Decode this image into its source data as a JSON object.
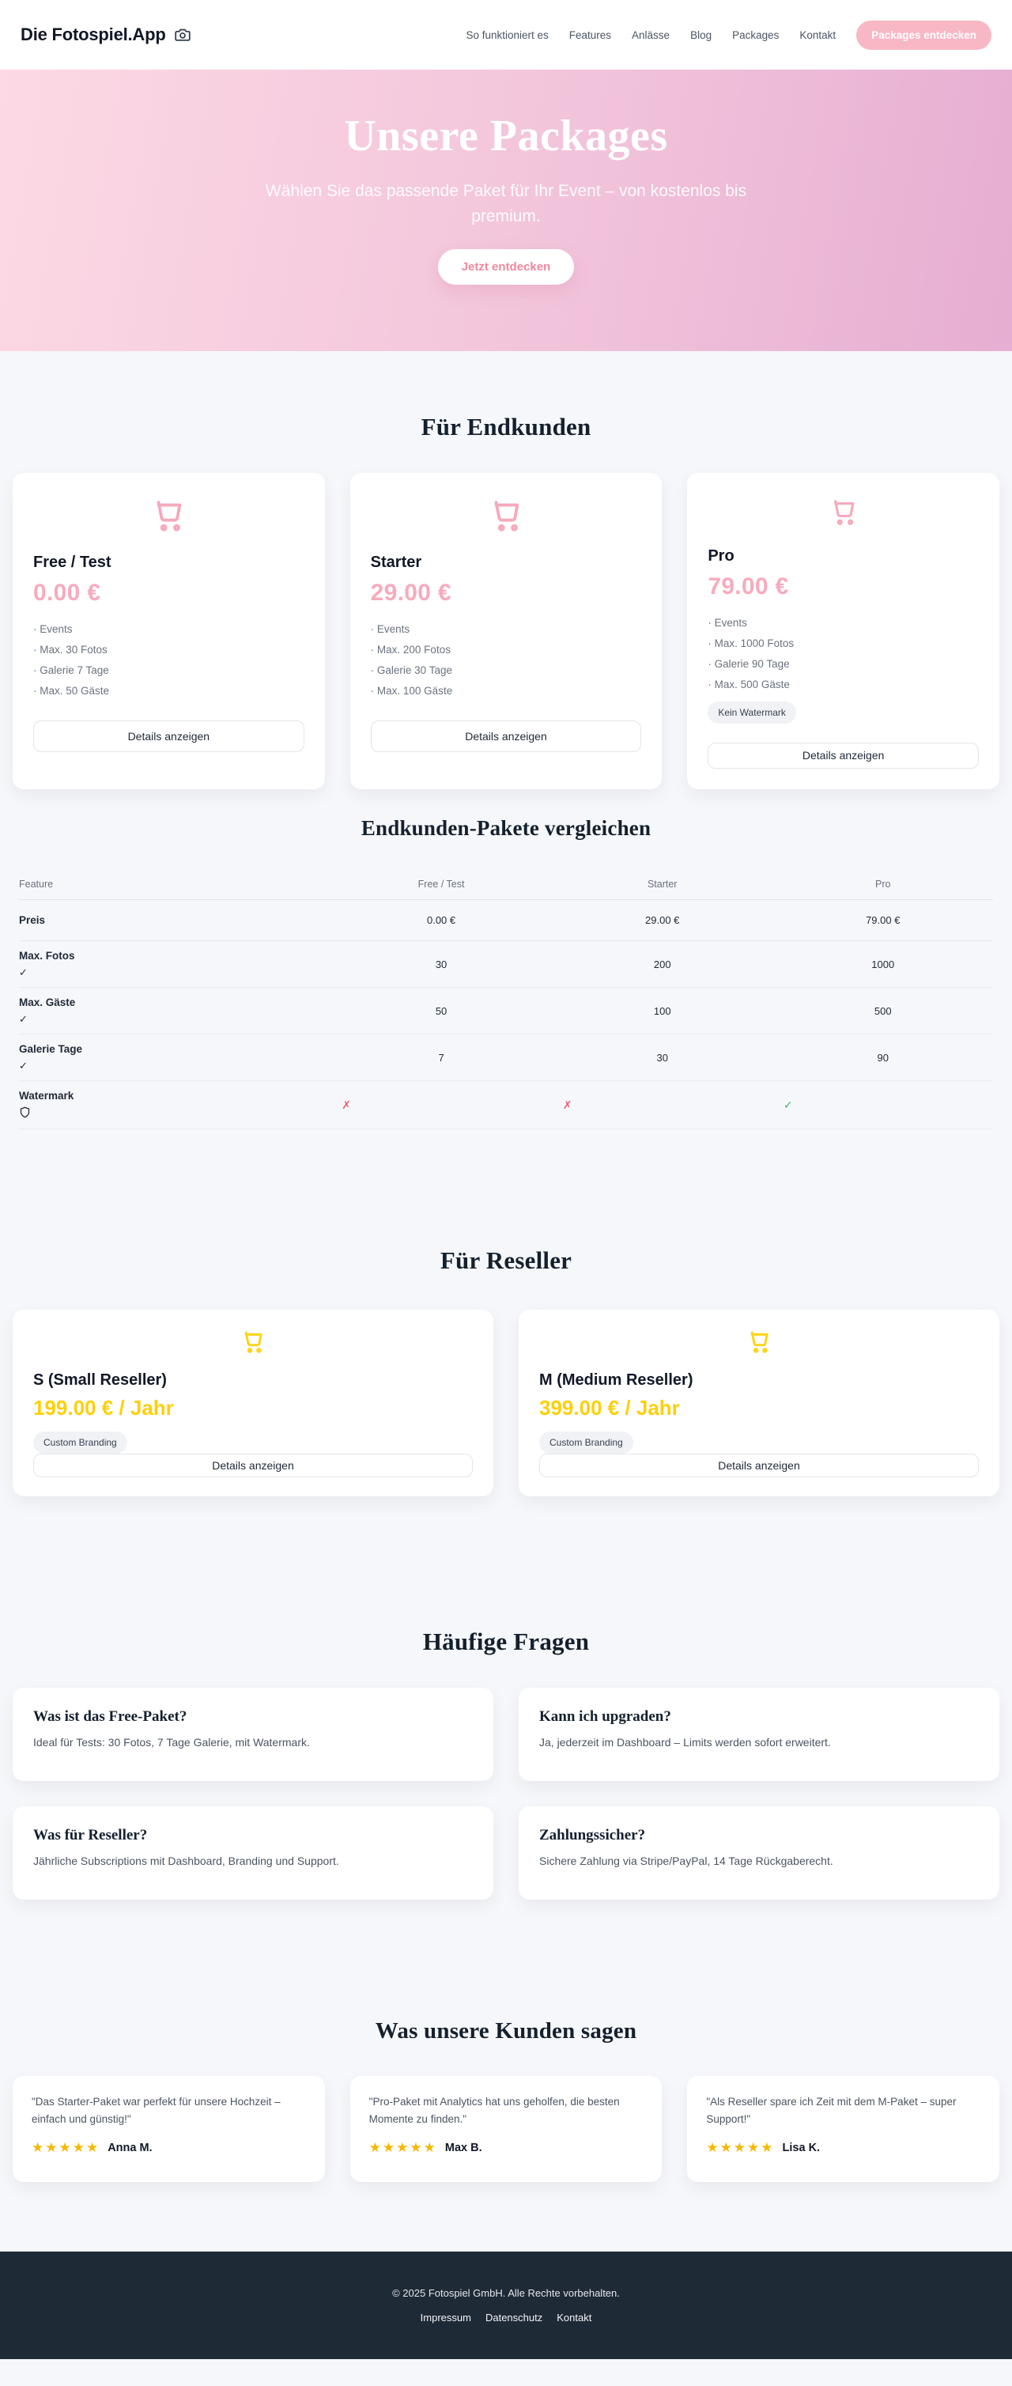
{
  "header": {
    "logo": "Die Fotospiel.App",
    "nav": [
      "So funktioniert es",
      "Features",
      "Anlässe",
      "Blog",
      "Packages",
      "Kontakt"
    ],
    "cta": "Packages entdecken"
  },
  "hero": {
    "title": "Unsere Packages",
    "subtitle": "Wählen Sie das passende Paket für Ihr Event – von kostenlos bis premium.",
    "cta": "Jetzt entdecken"
  },
  "endkunden": {
    "heading": "Für Endkunden",
    "details_label": "Details anzeigen",
    "cards": [
      {
        "name": "Free / Test",
        "price": "0.00 €",
        "features": [
          "Events",
          "Max. 30 Fotos",
          "Galerie 7 Tage",
          "Max. 50 Gäste"
        ],
        "badge": null
      },
      {
        "name": "Starter",
        "price": "29.00 €",
        "features": [
          "Events",
          "Max. 200 Fotos",
          "Galerie 30 Tage",
          "Max. 100 Gäste"
        ],
        "badge": null
      },
      {
        "name": "Pro",
        "price": "79.00 €",
        "features": [
          "Events",
          "Max. 1000 Fotos",
          "Galerie 90 Tage",
          "Max. 500 Gäste"
        ],
        "badge": "Kein Watermark"
      }
    ]
  },
  "comparison": {
    "heading": "Endkunden-Pakete vergleichen",
    "columns": [
      "Feature",
      "Free / Test",
      "Starter",
      "Pro"
    ],
    "rows": [
      {
        "feature": "Preis",
        "label_icon": null,
        "type": "text",
        "values": [
          "0.00 €",
          "29.00 €",
          "79.00 €"
        ]
      },
      {
        "feature": "Max. Fotos",
        "label_icon": "check",
        "type": "text",
        "values": [
          "30",
          "200",
          "1000"
        ]
      },
      {
        "feature": "Max. Gäste",
        "label_icon": "check",
        "type": "text",
        "values": [
          "50",
          "100",
          "500"
        ]
      },
      {
        "feature": "Galerie Tage",
        "label_icon": "check",
        "type": "text",
        "values": [
          "7",
          "30",
          "90"
        ]
      },
      {
        "feature": "Watermark",
        "label_icon": "shield",
        "type": "boolean",
        "values": [
          "no",
          "no",
          "yes"
        ]
      }
    ]
  },
  "reseller": {
    "heading": "Für Reseller",
    "details_label": "Details anzeigen",
    "cards": [
      {
        "name": "S (Small Reseller)",
        "price": "199.00 € / Jahr",
        "badge": "Custom Branding"
      },
      {
        "name": "M (Medium Reseller)",
        "price": "399.00 € / Jahr",
        "badge": "Custom Branding"
      }
    ]
  },
  "faq": {
    "heading": "Häufige Fragen",
    "items": [
      {
        "q": "Was ist das Free-Paket?",
        "a": "Ideal für Tests: 30 Fotos, 7 Tage Galerie, mit Watermark."
      },
      {
        "q": "Kann ich upgraden?",
        "a": "Ja, jederzeit im Dashboard – Limits werden sofort erweitert."
      },
      {
        "q": "Was für Reseller?",
        "a": "Jährliche Subscriptions mit Dashboard, Branding und Support."
      },
      {
        "q": "Zahlungssicher?",
        "a": "Sichere Zahlung via Stripe/PayPal, 14 Tage Rückgaberecht."
      }
    ]
  },
  "testimonials": {
    "heading": "Was unsere Kunden sagen",
    "items": [
      {
        "quote": "\"Das Starter-Paket war perfekt für unsere Hochzeit – einfach und günstig!\"",
        "name": "Anna M.",
        "stars": 5
      },
      {
        "quote": "\"Pro-Paket mit Analytics hat uns geholfen, die besten Momente zu finden.\"",
        "name": "Max B.",
        "stars": 5
      },
      {
        "quote": "\"Als Reseller spare ich Zeit mit dem M-Paket – super Support!\"",
        "name": "Lisa K.",
        "stars": 5
      }
    ]
  },
  "footer": {
    "copyright": "© 2025 Fotospiel GmbH. Alle Rechte vorbehalten.",
    "links": [
      "Impressum",
      "Datenschutz",
      "Kontakt"
    ]
  },
  "icon_glyphs": {
    "check": "✓",
    "x": "✗",
    "star": "★"
  },
  "colors": {
    "accent_pink": "#f7abbc",
    "cta_pink_bg": "#f8b7c4",
    "hero_gradient_left": "#fcd9e4",
    "hero_gradient_right": "#e6aed2",
    "accent_yellow": "#ffd412",
    "star_gold": "#f6b800",
    "check_green": "#2fbf5f",
    "x_red": "#f05d6c",
    "footer_bg": "#1f2a37",
    "page_bg": "#f6f7fa"
  }
}
